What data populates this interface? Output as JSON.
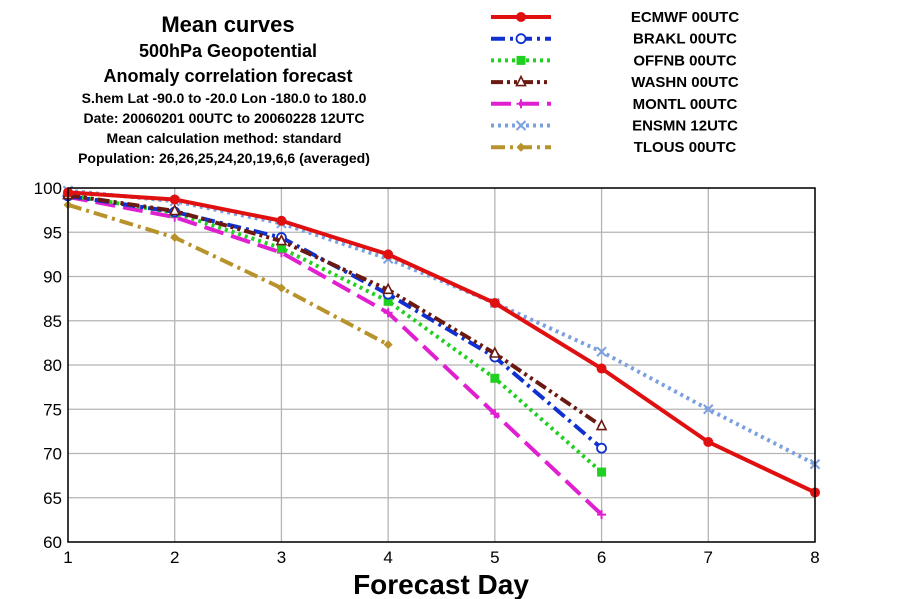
{
  "header": {
    "title": "Mean curves",
    "subtitle_lines": [
      "500hPa Geopotential",
      "Anomaly correlation forecast",
      "S.hem  Lat  -90.0 to -20.0 Lon  -180.0 to  180.0",
      "Date: 20060201 00UTC to 20060228 12UTC",
      "Mean calculation method: standard",
      "Population: 26,26,25,24,20,19,6,6 (averaged)"
    ]
  },
  "chart_data": {
    "type": "line",
    "xlabel": "Forecast Day",
    "ylabel": "",
    "xlim": [
      1,
      8
    ],
    "ylim": [
      60,
      100
    ],
    "xticks": [
      1,
      2,
      3,
      4,
      5,
      6,
      7,
      8
    ],
    "yticks": [
      60,
      65,
      70,
      75,
      80,
      85,
      90,
      95,
      100
    ],
    "grid": true,
    "legend_position": "top-right",
    "series": [
      {
        "name": "ECMWF 00UTC",
        "color": "#e01010",
        "dash": "solid",
        "marker": "circle-filled",
        "x": [
          1,
          2,
          3,
          4,
          5,
          6,
          7,
          8
        ],
        "values": [
          99.5,
          98.7,
          96.3,
          92.5,
          87.0,
          79.6,
          71.3,
          65.6
        ]
      },
      {
        "name": "BRAKL 00UTC",
        "color": "#1030d0",
        "dash": "dash-dot",
        "marker": "circle-open",
        "x": [
          1,
          2,
          3,
          4,
          5,
          6
        ],
        "values": [
          99.1,
          97.3,
          94.4,
          88.0,
          80.9,
          70.6
        ]
      },
      {
        "name": "OFFNB 00UTC",
        "color": "#20d020",
        "dash": "dot",
        "marker": "square-filled",
        "x": [
          1,
          2,
          3,
          4,
          5,
          6
        ],
        "values": [
          99.2,
          97.2,
          93.2,
          87.2,
          78.5,
          67.9
        ]
      },
      {
        "name": "WASHN 00UTC",
        "color": "#6a1a10",
        "dash": "dash-dot-dot",
        "marker": "triangle-open",
        "x": [
          1,
          2,
          3,
          4,
          5,
          6
        ],
        "values": [
          99.2,
          97.4,
          94.0,
          88.5,
          81.3,
          73.1
        ]
      },
      {
        "name": "MONTL 00UTC",
        "color": "#e020d0",
        "dash": "long-dash",
        "marker": "plus",
        "x": [
          1,
          2,
          3,
          4,
          5,
          6
        ],
        "values": [
          99.0,
          96.7,
          92.7,
          85.9,
          74.5,
          63.1
        ]
      },
      {
        "name": "ENSMN 12UTC",
        "color": "#7aa0e0",
        "dash": "dot",
        "marker": "x",
        "x": [
          1,
          2,
          3,
          4,
          5,
          6,
          7,
          8
        ],
        "values": [
          99.7,
          98.5,
          96.0,
          92.0,
          87.0,
          81.5,
          75.0,
          68.8
        ]
      },
      {
        "name": "TLOUS 00UTC",
        "color": "#b8922a",
        "dash": "dash-dot",
        "marker": "diamond-filled",
        "x": [
          1,
          2,
          3,
          4
        ],
        "values": [
          98.1,
          94.4,
          88.7,
          82.3
        ]
      }
    ]
  }
}
